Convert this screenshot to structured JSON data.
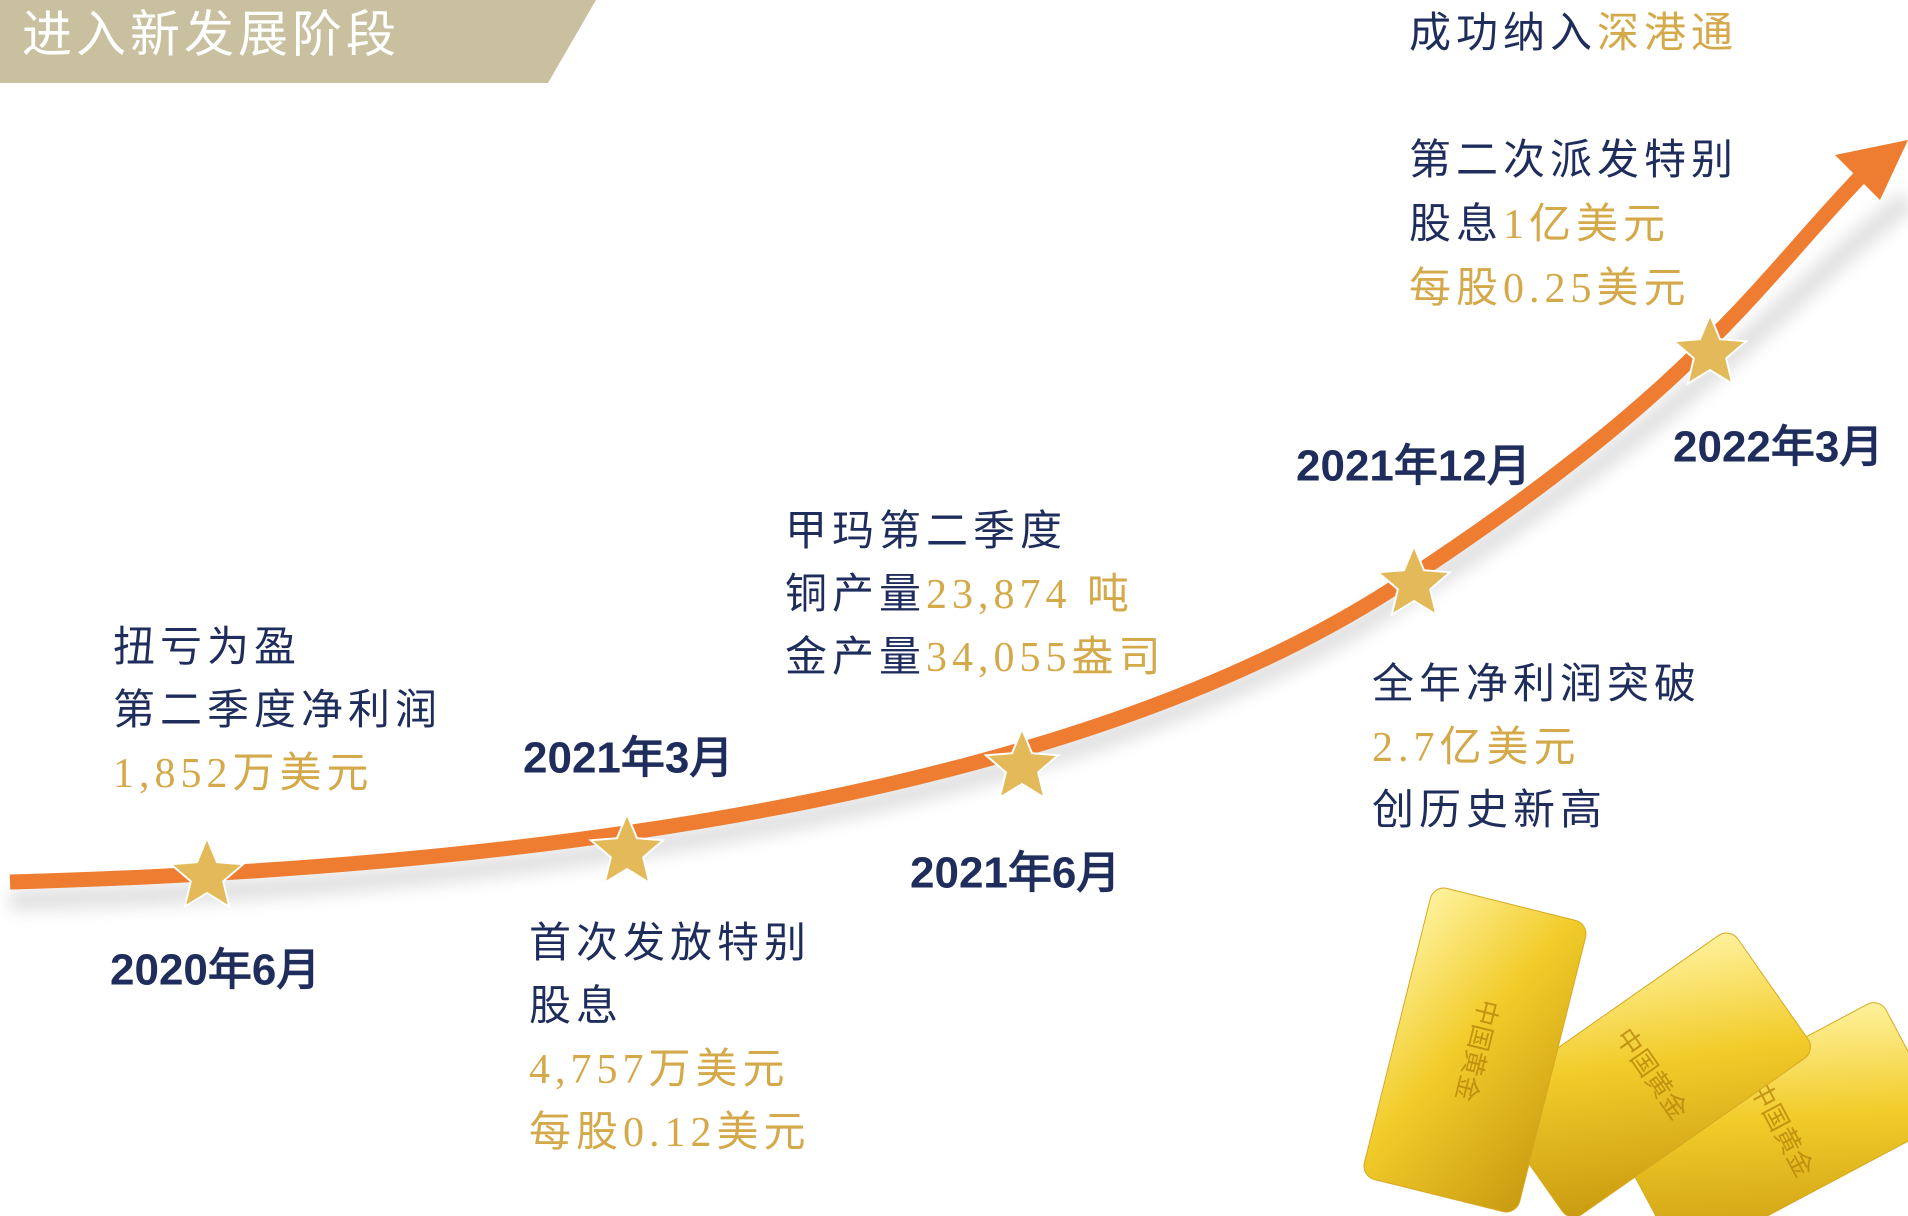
{
  "header": {
    "title": "进入新发展阶段"
  },
  "milestones": [
    {
      "date": "2020年6月",
      "lines": [
        [
          {
            "text": "扭亏为盈",
            "color": "#1f2d5c"
          }
        ],
        [
          {
            "text": "第二季度净利润",
            "color": "#1f2d5c"
          }
        ],
        [
          {
            "text": "1,852万美元",
            "color": "#d4a94a"
          }
        ]
      ]
    },
    {
      "date": "2021年3月",
      "lines": [
        [
          {
            "text": "首次发放特别",
            "color": "#1f2d5c"
          }
        ],
        [
          {
            "text": "股息",
            "color": "#1f2d5c"
          }
        ],
        [
          {
            "text": "4,757万美元",
            "color": "#d4a94a"
          }
        ],
        [
          {
            "text": "每股0.12美元",
            "color": "#d4a94a"
          }
        ]
      ]
    },
    {
      "date": "2021年6月",
      "lines": [
        [
          {
            "text": "甲玛第二季度",
            "color": "#1f2d5c"
          }
        ],
        [
          {
            "text": "铜产量",
            "color": "#1f2d5c"
          },
          {
            "text": "23,874 吨",
            "color": "#d4a94a"
          }
        ],
        [
          {
            "text": "金产量",
            "color": "#1f2d5c"
          },
          {
            "text": "34,055盎司",
            "color": "#d4a94a"
          }
        ]
      ]
    },
    {
      "date": "2021年12月",
      "lines": [
        [
          {
            "text": "全年净利润突破",
            "color": "#1f2d5c"
          }
        ],
        [
          {
            "text": "2.7亿美元",
            "color": "#d4a94a"
          }
        ],
        [
          {
            "text": "创历史新高",
            "color": "#1f2d5c"
          }
        ]
      ]
    },
    {
      "date": "2022年3月",
      "lines": [
        [
          {
            "text": "成功纳入",
            "color": "#1f2d5c"
          },
          {
            "text": "深港通",
            "color": "#d4a94a"
          }
        ],
        [
          {
            "text": "第二次派发特别",
            "color": "#1f2d5c"
          }
        ],
        [
          {
            "text": "股息",
            "color": "#1f2d5c"
          },
          {
            "text": "1亿美元",
            "color": "#d4a94a"
          }
        ],
        [
          {
            "text": "每股0.25美元",
            "color": "#d4a94a"
          }
        ]
      ]
    }
  ],
  "gold_bar_label": "中国黄金"
}
